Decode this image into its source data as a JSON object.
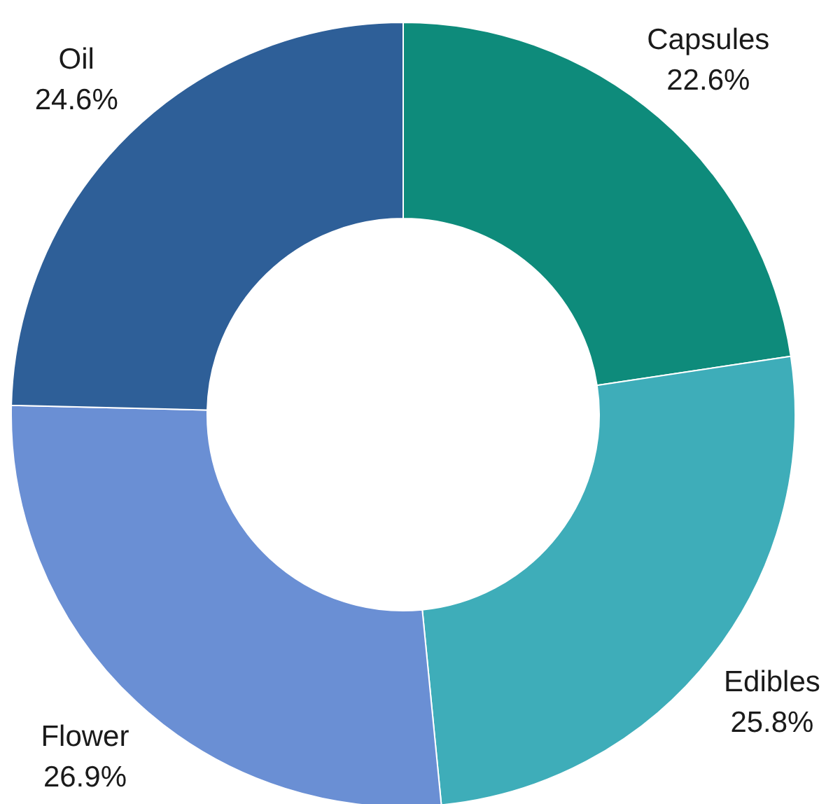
{
  "chart_data": {
    "type": "donut",
    "categories": [
      "Capsules",
      "Edibles",
      "Flower",
      "Oil"
    ],
    "values": [
      22.6,
      25.8,
      26.9,
      24.6
    ],
    "value_labels": [
      "22.6%",
      "25.8%",
      "26.9%",
      "24.6%"
    ],
    "colors": [
      "#0e8b7b",
      "#3eadb9",
      "#6a8fd4",
      "#2e5f98"
    ]
  }
}
